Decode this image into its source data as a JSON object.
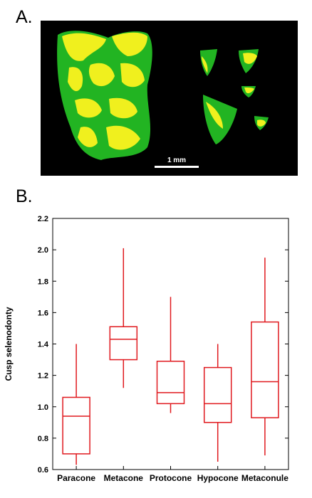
{
  "figure": {
    "panel_a_label": "A.",
    "panel_b_label": "B.",
    "scale_bar_label": "1 mm"
  },
  "colors": {
    "background": "#000000",
    "enamel_green": "#22b422",
    "selenodont_yellow": "#f0f01e",
    "box_red": "#e0191e",
    "axis": "#000000"
  },
  "chart_data": {
    "type": "box",
    "title": "",
    "xlabel": "",
    "ylabel": "Cusp selenodonty",
    "ylim": [
      0.6,
      2.2
    ],
    "yticks": [
      0.6,
      0.8,
      1.0,
      1.2,
      1.4,
      1.6,
      1.8,
      2.0,
      2.2
    ],
    "ytick_labels": [
      "0.6",
      "0.8",
      "1.0",
      "1.2",
      "1.4",
      "1.6",
      "1.8",
      "2.0",
      "2.2"
    ],
    "grid": false,
    "categories": [
      "Paracone",
      "Metacone",
      "Protocone",
      "Hypocone",
      "Metaconule"
    ],
    "boxes": [
      {
        "category": "Paracone",
        "min": 0.63,
        "q1": 0.7,
        "median": 0.94,
        "q3": 1.06,
        "max": 1.4
      },
      {
        "category": "Metacone",
        "min": 1.12,
        "q1": 1.3,
        "median": 1.43,
        "q3": 1.51,
        "max": 2.01
      },
      {
        "category": "Protocone",
        "min": 0.96,
        "q1": 1.02,
        "median": 1.09,
        "q3": 1.29,
        "max": 1.7
      },
      {
        "category": "Hypocone",
        "min": 0.65,
        "q1": 0.9,
        "median": 1.02,
        "q3": 1.25,
        "max": 1.4
      },
      {
        "category": "Metaconule",
        "min": 0.69,
        "q1": 0.93,
        "median": 1.16,
        "q3": 1.54,
        "max": 1.95
      }
    ]
  }
}
